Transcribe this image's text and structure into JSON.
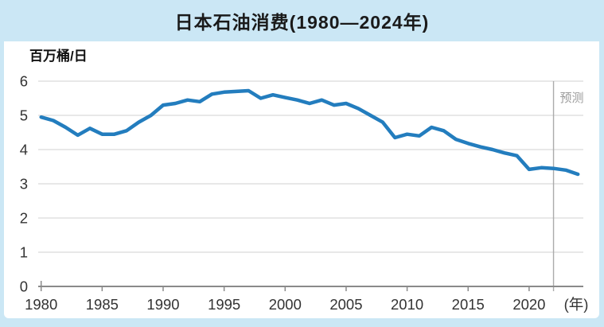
{
  "header": {
    "title": "日本石油消费(1980—2024年)"
  },
  "colors": {
    "band_blue": "#cbe7f5",
    "line_blue": "#237dbe",
    "grid_gray": "#d9d9d9",
    "axis_gray": "#8a8a8a",
    "divider_gray": "#ababab",
    "tick_text": "#333333",
    "muted_text": "#9b9b9b"
  },
  "chart_data": {
    "type": "line",
    "title": "日本石油消费(1980—2024年)",
    "unit_label": "百万桶/日",
    "xlabel_suffix": "(年)",
    "forecast_label": "预测",
    "forecast_divider_year": 2022,
    "grid": "horizontal-on",
    "legend": "none",
    "xlim": [
      1980,
      2024
    ],
    "ylim": [
      0,
      6
    ],
    "x_ticks": [
      1980,
      1985,
      1990,
      1995,
      2000,
      2005,
      2010,
      2015,
      2020
    ],
    "y_ticks": [
      0,
      1,
      2,
      3,
      4,
      5,
      6
    ],
    "series_name": "日本石油消费 (百万桶/日)",
    "x": [
      1980,
      1981,
      1982,
      1983,
      1984,
      1985,
      1986,
      1987,
      1988,
      1989,
      1990,
      1991,
      1992,
      1993,
      1994,
      1995,
      1996,
      1997,
      1998,
      1999,
      2000,
      2001,
      2002,
      2003,
      2004,
      2005,
      2006,
      2007,
      2008,
      2009,
      2010,
      2011,
      2012,
      2013,
      2014,
      2015,
      2016,
      2017,
      2018,
      2019,
      2020,
      2021,
      2022,
      2023,
      2024
    ],
    "values": [
      4.95,
      4.85,
      4.65,
      4.42,
      4.62,
      4.45,
      4.45,
      4.55,
      4.8,
      5.0,
      5.3,
      5.35,
      5.45,
      5.4,
      5.62,
      5.68,
      5.7,
      5.72,
      5.5,
      5.6,
      5.52,
      5.45,
      5.35,
      5.45,
      5.3,
      5.35,
      5.2,
      5.0,
      4.8,
      4.35,
      4.45,
      4.4,
      4.65,
      4.55,
      4.3,
      4.18,
      4.08,
      4.0,
      3.9,
      3.82,
      3.42,
      3.47,
      3.45,
      3.4,
      3.28
    ]
  }
}
